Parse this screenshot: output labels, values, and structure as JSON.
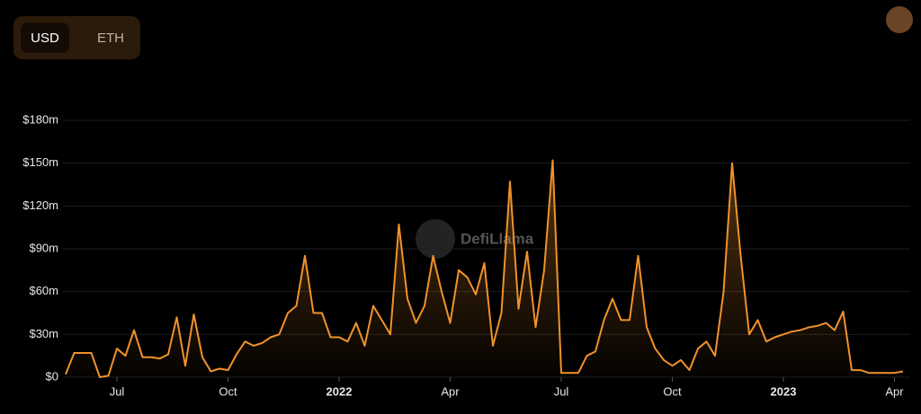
{
  "currency_options": [
    "USD",
    "ETH"
  ],
  "chart_data": {
    "type": "line",
    "watermark": "DefiLlama",
    "categories": [
      null,
      null,
      null,
      null,
      null,
      null,
      "Jul",
      null,
      null,
      null,
      null,
      null,
      null,
      null,
      null,
      null,
      null,
      null,
      null,
      "Oct",
      null,
      null,
      null,
      null,
      null,
      null,
      null,
      null,
      null,
      null,
      null,
      null,
      "2022",
      null,
      null,
      null,
      null,
      null,
      null,
      null,
      null,
      null,
      null,
      null,
      null,
      "Apr",
      null,
      null,
      null,
      null,
      null,
      null,
      null,
      null,
      null,
      null,
      null,
      null,
      "Jul",
      null,
      null,
      null,
      null,
      null,
      null,
      null,
      null,
      null,
      null,
      null,
      null,
      "Oct",
      null,
      null,
      null,
      null,
      null,
      null,
      null,
      null,
      null,
      null,
      null,
      null,
      "2023",
      null,
      null,
      null,
      null,
      null,
      null,
      null,
      null,
      null,
      null,
      null,
      null,
      "Apr",
      null
    ],
    "series": [
      {
        "color": "#f0922b",
        "values": [
          2,
          17,
          17,
          17,
          0,
          1,
          20,
          15,
          33,
          14,
          14,
          13,
          16,
          42,
          8,
          44,
          14,
          4,
          6,
          5,
          16,
          25,
          22,
          24,
          28,
          30,
          45,
          50,
          85,
          45,
          45,
          28,
          28,
          25,
          38,
          22,
          50,
          40,
          30,
          107,
          55,
          38,
          50,
          85,
          60,
          38,
          75,
          70,
          58,
          80,
          22,
          45,
          137,
          48,
          88,
          35,
          75,
          152,
          3,
          3,
          3,
          15,
          18,
          40,
          55,
          40,
          40,
          85,
          35,
          20,
          12,
          8,
          12,
          5,
          20,
          25,
          15,
          60,
          150,
          85,
          30,
          40,
          25,
          28,
          30,
          32,
          33,
          35,
          36,
          38,
          33,
          46,
          5,
          5,
          3,
          3,
          3,
          3,
          4
        ]
      }
    ],
    "ylim": [
      0,
      180
    ],
    "yticks": [
      {
        "value": 0,
        "label": "$0"
      },
      {
        "value": 30,
        "label": "$30m"
      },
      {
        "value": 60,
        "label": "$60m"
      },
      {
        "value": 90,
        "label": "$90m"
      },
      {
        "value": 120,
        "label": "$120m"
      },
      {
        "value": 150,
        "label": "$150m"
      },
      {
        "value": 180,
        "label": "$180m"
      }
    ],
    "grid": true
  }
}
